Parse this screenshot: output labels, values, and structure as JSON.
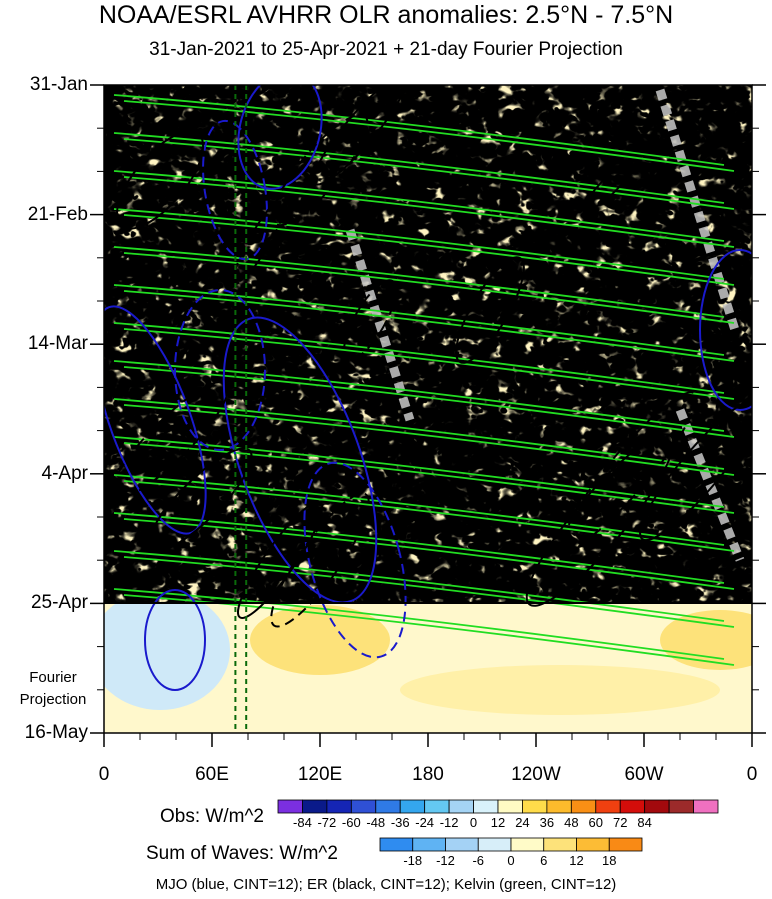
{
  "chart_data": {
    "type": "heatmap",
    "title": "NOAA/ESRL AVHRR OLR anomalies: 2.5°N - 7.5°N",
    "subtitle": "31-Jan-2021 to 25-Apr-2021 + 21-day Fourier Projection",
    "y_ticks": [
      "31-Jan",
      "21-Feb",
      "14-Mar",
      "4-Apr",
      "25-Apr",
      "16-May"
    ],
    "fourier_label": "Fourier Projection",
    "x_ticks": [
      "0",
      "60E",
      "120E",
      "180",
      "120W",
      "60W",
      "0"
    ],
    "x_range_deg_east": [
      0,
      360
    ],
    "y_range": [
      "31-Jan-2021",
      "16-May-2021"
    ],
    "observation_end": "25-Apr-2021",
    "legends": {
      "obs": {
        "title": "Obs: W/m^2",
        "ticks": [
          "-84",
          "-72",
          "-60",
          "-48",
          "-36",
          "-24",
          "-12",
          "0",
          "12",
          "24",
          "36",
          "48",
          "60",
          "72",
          "84"
        ],
        "colors": [
          "#7b2fe0",
          "#0a1a8a",
          "#1525b5",
          "#2f50d5",
          "#2f7ae6",
          "#34a6ee",
          "#64c8f2",
          "#a5d4f5",
          "#d9f2fb",
          "#fffbc3",
          "#ffdc4a",
          "#fdbb2c",
          "#f98f15",
          "#f04010",
          "#d40d0a",
          "#a2090d",
          "#9c2a2a",
          "#f070c0"
        ]
      },
      "sum_of_waves": {
        "title": "Sum of Waves: W/m^2",
        "ticks": [
          "-18",
          "-12",
          "-6",
          "0",
          "6",
          "12",
          "18"
        ],
        "colors": [
          "#2f8cf0",
          "#5fb3f3",
          "#a4d2f5",
          "#d7eef9",
          "#fffbc8",
          "#fde27a",
          "#fcbc35",
          "#f98a15"
        ]
      }
    },
    "contours": "MJO (blue, CINT=12); ER (black, CINT=12); Kelvin (green, CINT=12)",
    "series_colors": {
      "mjo": "#1a1acc",
      "er": "#000000",
      "kelvin": "#22dd22"
    }
  }
}
